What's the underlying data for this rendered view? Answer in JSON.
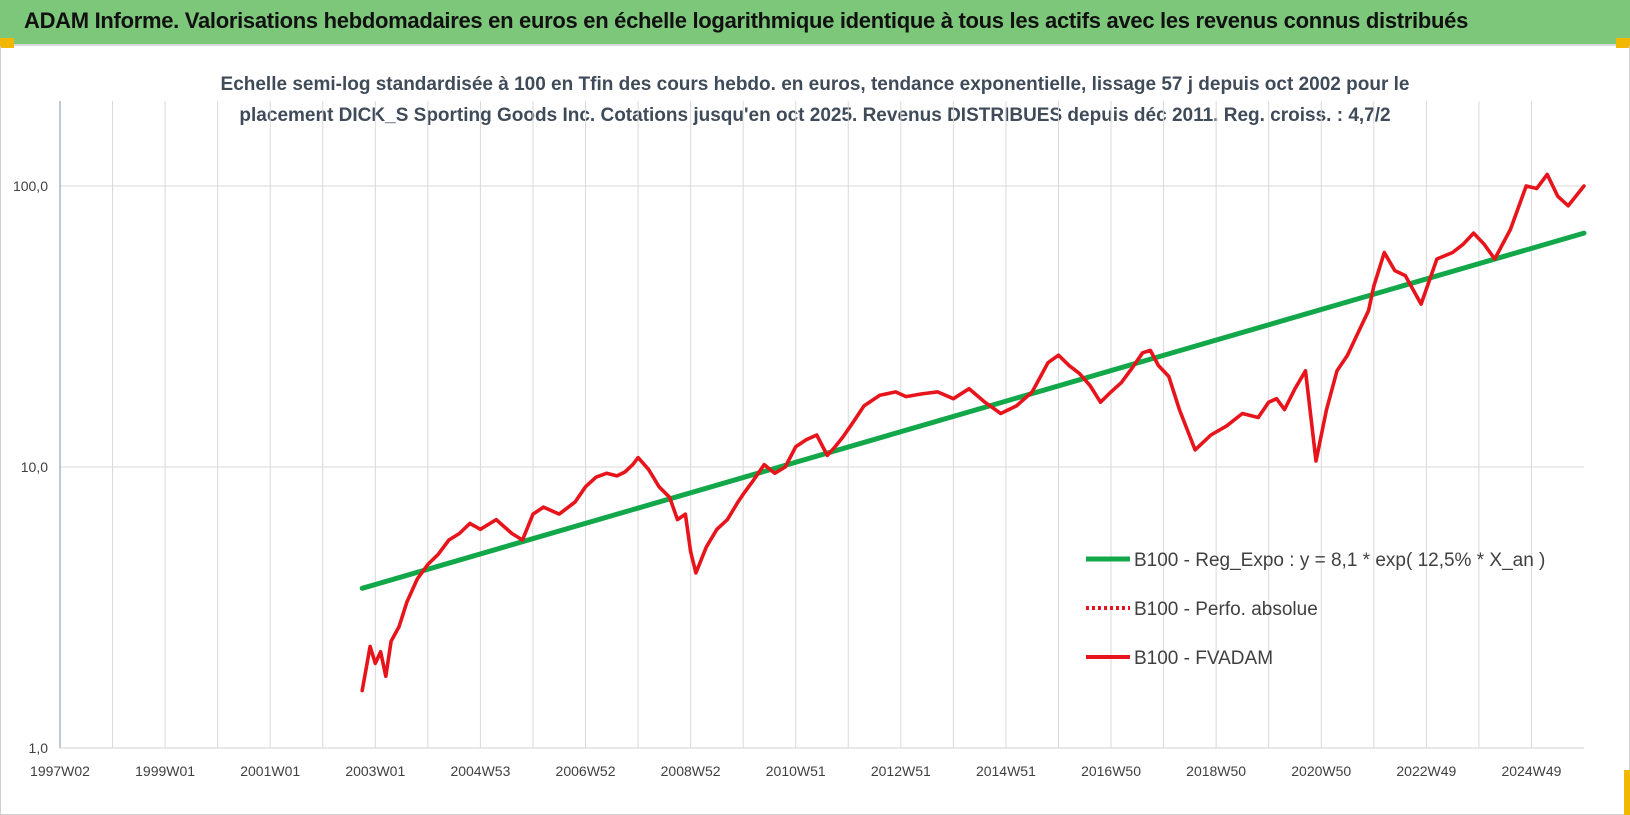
{
  "banner": {
    "title": "ADAM Informe. Valorisations hebdomadaires en euros en échelle logarithmique identique à tous les actifs avec les revenus connus distribués"
  },
  "colors": {
    "banner_bg": "#7dc77a",
    "accent_corner": "#f2b800",
    "fvadam": "#e8141b",
    "regression": "#12a84a",
    "grid": "#d9d9d9",
    "axis": "#8ea3c4"
  },
  "chart_data": {
    "type": "line",
    "title_lines": [
      "Echelle semi-log standardisée à 100 en Tfin des cours hebdo. en euros, tendance exponentielle, lissage 57 j depuis oct 2002 pour le",
      "placement DICK_S Sporting Goods Inc. Cotations jusqu'en oct 2025. Revenus DISTRIBUES depuis déc 2011. Reg. croiss. : 4,7/2"
    ],
    "y_scale": "log",
    "ylim": [
      1,
      200
    ],
    "y_ticks": [
      {
        "value": 1,
        "label": "1,0"
      },
      {
        "value": 10,
        "label": "10,0"
      },
      {
        "value": 100,
        "label": "100,0"
      }
    ],
    "xlim": [
      1997.0,
      2026.0
    ],
    "x_ticks": [
      {
        "value": 1997.0,
        "label": "1997W02"
      },
      {
        "value": 1999.0,
        "label": "1999W01"
      },
      {
        "value": 2001.0,
        "label": "2001W01"
      },
      {
        "value": 2003.0,
        "label": "2003W01"
      },
      {
        "value": 2005.0,
        "label": "2004W53"
      },
      {
        "value": 2007.0,
        "label": "2006W52"
      },
      {
        "value": 2009.0,
        "label": "2008W52"
      },
      {
        "value": 2011.0,
        "label": "2010W51"
      },
      {
        "value": 2013.0,
        "label": "2012W51"
      },
      {
        "value": 2015.0,
        "label": "2014W51"
      },
      {
        "value": 2017.0,
        "label": "2016W50"
      },
      {
        "value": 2019.0,
        "label": "2018W50"
      },
      {
        "value": 2021.0,
        "label": "2020W50"
      },
      {
        "value": 2023.0,
        "label": "2022W49"
      },
      {
        "value": 2025.0,
        "label": "2024W49"
      }
    ],
    "grid": true,
    "legend_position": "right",
    "series": [
      {
        "name": "B100 - Reg_Expo : y = 8,1 * exp( 12,5% *  X_an )",
        "color": "#12a84a",
        "style": "solid",
        "x": [
          2002.75,
          2026.0
        ],
        "y": [
          3.7,
          68.0
        ]
      },
      {
        "name": "B100 - Perfo. absolue",
        "color": "#e8141b",
        "style": "dotted",
        "x": [],
        "y": []
      },
      {
        "name": "B100 - FVADAM",
        "color": "#e8141b",
        "style": "solid",
        "x": [
          2002.75,
          2002.9,
          2003.0,
          2003.1,
          2003.2,
          2003.3,
          2003.45,
          2003.6,
          2003.8,
          2004.0,
          2004.2,
          2004.4,
          2004.6,
          2004.8,
          2005.0,
          2005.3,
          2005.6,
          2005.8,
          2006.0,
          2006.2,
          2006.5,
          2006.8,
          2007.0,
          2007.2,
          2007.4,
          2007.6,
          2007.75,
          2007.9,
          2008.0,
          2008.2,
          2008.4,
          2008.6,
          2008.75,
          2008.9,
          2009.0,
          2009.1,
          2009.3,
          2009.5,
          2009.7,
          2009.9,
          2010.0,
          2010.2,
          2010.4,
          2010.6,
          2010.8,
          2011.0,
          2011.2,
          2011.4,
          2011.6,
          2011.75,
          2011.9,
          2012.1,
          2012.3,
          2012.6,
          2012.9,
          2013.1,
          2013.4,
          2013.7,
          2014.0,
          2014.3,
          2014.6,
          2014.9,
          2015.2,
          2015.5,
          2015.8,
          2016.0,
          2016.2,
          2016.4,
          2016.6,
          2016.8,
          2017.0,
          2017.2,
          2017.4,
          2017.6,
          2017.75,
          2017.9,
          2018.1,
          2018.3,
          2018.6,
          2018.9,
          2019.2,
          2019.5,
          2019.8,
          2020.0,
          2020.15,
          2020.3,
          2020.5,
          2020.7,
          2020.9,
          2021.1,
          2021.3,
          2021.5,
          2021.7,
          2021.9,
          2022.0,
          2022.2,
          2022.4,
          2022.6,
          2022.9,
          2023.2,
          2023.5,
          2023.7,
          2023.9,
          2024.1,
          2024.3,
          2024.6,
          2024.9,
          2025.1,
          2025.3,
          2025.5,
          2025.7,
          2026.0
        ],
        "y": [
          1.6,
          2.3,
          2.0,
          2.2,
          1.8,
          2.4,
          2.7,
          3.3,
          4.0,
          4.5,
          4.9,
          5.5,
          5.8,
          6.3,
          6.0,
          6.5,
          5.8,
          5.5,
          6.8,
          7.2,
          6.8,
          7.5,
          8.5,
          9.2,
          9.5,
          9.3,
          9.6,
          10.2,
          10.8,
          9.8,
          8.5,
          7.8,
          6.5,
          6.8,
          5.0,
          4.2,
          5.2,
          6.0,
          6.5,
          7.5,
          8.0,
          9.0,
          10.2,
          9.5,
          10.0,
          11.8,
          12.5,
          13.0,
          11.0,
          11.8,
          12.8,
          14.5,
          16.5,
          18.0,
          18.5,
          17.8,
          18.2,
          18.5,
          17.5,
          19.0,
          17.0,
          15.5,
          16.5,
          18.5,
          23.5,
          25.0,
          23.0,
          21.5,
          19.5,
          17.0,
          18.5,
          20.0,
          22.5,
          25.5,
          26.0,
          23.0,
          21.0,
          16.0,
          11.5,
          13.0,
          14.0,
          15.5,
          15.0,
          17.0,
          17.5,
          16.0,
          19.0,
          22.0,
          10.5,
          16.0,
          22.0,
          25.0,
          30.0,
          36.0,
          44.0,
          58.0,
          50.0,
          48.0,
          38.0,
          55.0,
          58.0,
          62.0,
          68.0,
          62.0,
          55.0,
          70.0,
          100.0,
          98.0,
          110.0,
          92.0,
          85.0,
          100.0
        ]
      }
    ]
  }
}
